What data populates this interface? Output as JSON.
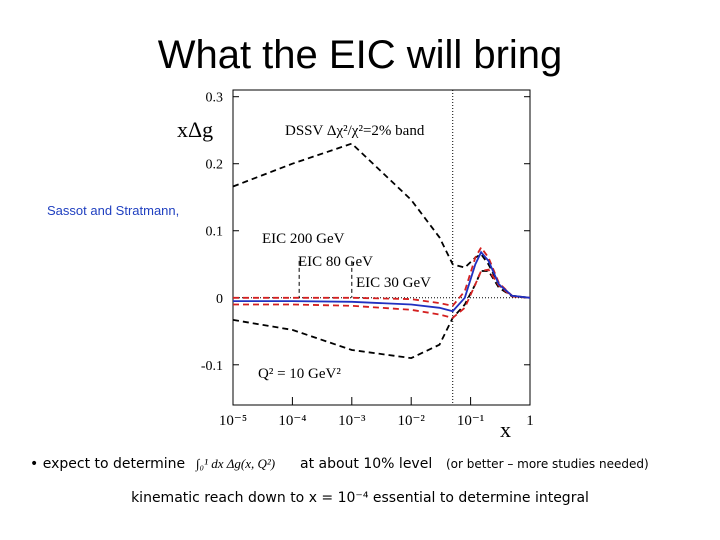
{
  "slide": {
    "title": "What the EIC will bring",
    "credit": "Sassot and Stratmann,",
    "bullet": "expect to determine",
    "formula": "∫₀¹ dx Δg(x, Q²)",
    "level": "at about 10% level",
    "note": "(or better – more studies needed)",
    "footer": "kinematic reach down to x = 10⁻⁴ essential to determine integral"
  },
  "chart_data": {
    "type": "line",
    "x_label": "x",
    "y_label": "xΔg",
    "x_scale": "log",
    "annotations": [
      "DSSV Δχ²/χ²=2% band",
      "EIC 200 GeV",
      "EIC 80 GeV",
      "EIC 30 GeV",
      "Q² = 10 GeV²"
    ],
    "x": [
      1e-05,
      0.0001,
      0.001,
      0.01,
      0.03,
      0.05,
      0.08,
      0.12,
      0.15,
      0.2,
      0.3,
      0.5,
      1
    ],
    "series": [
      {
        "color": "#000000",
        "dash": true,
        "values": [
          0.166,
          0.2,
          0.23,
          0.146,
          0.09,
          0.05,
          0.045,
          0.06,
          0.065,
          0.05,
          0.02,
          0.003,
          0
        ]
      },
      {
        "color": "#000000",
        "dash": true,
        "values": [
          -0.033,
          -0.048,
          -0.078,
          -0.09,
          -0.07,
          -0.03,
          -0.01,
          0.02,
          0.04,
          0.04,
          0.015,
          0.002,
          0
        ]
      },
      {
        "color": "#d42020",
        "dash": true,
        "values": [
          0,
          0,
          0,
          -0.002,
          -0.008,
          -0.012,
          0.01,
          0.06,
          0.075,
          0.06,
          0.022,
          0.003,
          0
        ]
      },
      {
        "color": "#d42020",
        "dash": true,
        "values": [
          -0.01,
          -0.01,
          -0.012,
          -0.018,
          -0.025,
          -0.03,
          -0.015,
          0.02,
          0.04,
          0.042,
          0.018,
          0.002,
          0
        ]
      },
      {
        "color": "#2030c0",
        "dash": false,
        "values": [
          -0.005,
          -0.005,
          -0.006,
          -0.01,
          -0.015,
          -0.02,
          0,
          0.05,
          0.068,
          0.055,
          0.02,
          0.003,
          0
        ]
      }
    ],
    "vlines": [
      0.00013,
      0.001,
      0.05
    ],
    "xlim": [
      1e-05,
      1
    ],
    "ylim": [
      -0.16,
      0.31
    ],
    "xticks": [
      {
        "value": 1e-05,
        "label": "10⁻⁵"
      },
      {
        "value": 0.0001,
        "label": "10⁻⁴"
      },
      {
        "value": 0.001,
        "label": "10⁻³"
      },
      {
        "value": 0.01,
        "label": "10⁻²"
      },
      {
        "value": 0.1,
        "label": "10⁻¹"
      },
      1
    ],
    "yticks": [
      -0.1,
      0,
      0.1,
      0.2,
      0.3
    ]
  }
}
